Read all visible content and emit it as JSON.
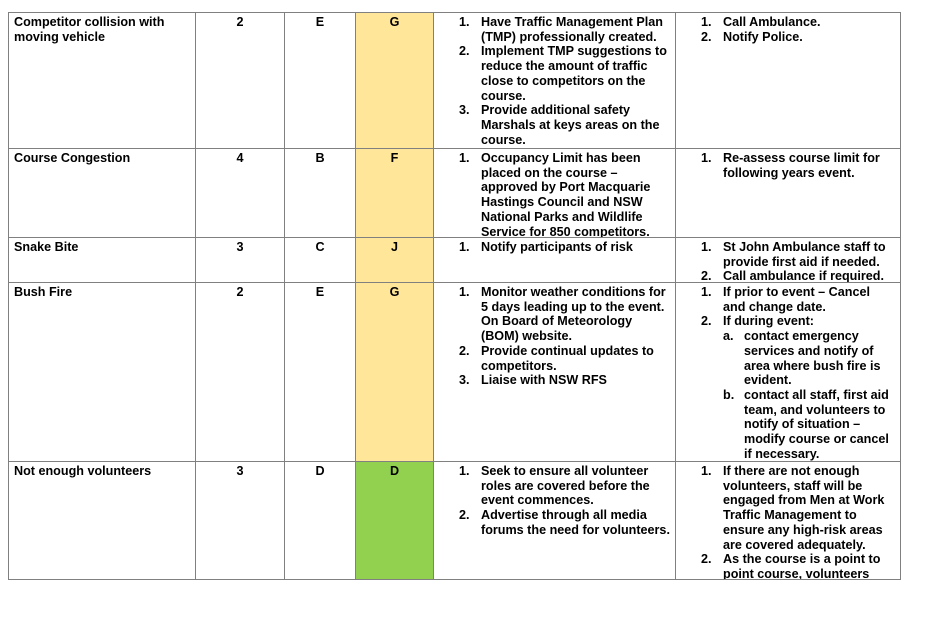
{
  "colors": {
    "yellow": "#ffe699",
    "green": "#92d050",
    "border": "#808080"
  },
  "rows": [
    {
      "hazard": "Competitor collision with moving vehicle",
      "likelihood": "2",
      "consequence": "E",
      "rating": "G",
      "rating_color": "yellow",
      "controls": [
        "Have Traffic Management Plan (TMP) professionally created.",
        "Implement TMP suggestions to reduce the amount of traffic close to competitors on the course.",
        "Provide additional safety Marshals at keys areas on the course."
      ],
      "response": [
        {
          "text": "Call Ambulance."
        },
        {
          "text": "Notify Police."
        }
      ]
    },
    {
      "hazard": "Course Congestion",
      "likelihood": "4",
      "consequence": "B",
      "rating": "F",
      "rating_color": "yellow",
      "controls": [
        "Occupancy Limit has been placed on the course – approved by Port Macquarie Hastings Council and NSW National Parks and Wildlife Service for 850 competitors."
      ],
      "response": [
        {
          "text": "Re-assess course limit for following years event."
        }
      ]
    },
    {
      "hazard": "Snake Bite",
      "likelihood": "3",
      "consequence": "C",
      "rating": "J",
      "rating_color": "yellow",
      "controls": [
        "Notify participants of risk"
      ],
      "response": [
        {
          "text": "St John Ambulance staff to provide first aid if needed."
        },
        {
          "text": "Call ambulance if required."
        }
      ]
    },
    {
      "hazard": "Bush Fire",
      "likelihood": "2",
      "consequence": "E",
      "rating": "G",
      "rating_color": "yellow",
      "controls": [
        "Monitor weather conditions for 5 days leading up to the event. On Board of Meteorology (BOM) website.",
        "Provide continual updates to competitors.",
        "Liaise with NSW RFS"
      ],
      "response": [
        {
          "text": "If prior to event – Cancel and change date."
        },
        {
          "text": "If during event:",
          "sub": [
            "contact emergency services and notify of area where bush fire is evident.",
            "contact all staff, first aid team, and volunteers to notify of situation – modify course or cancel if necessary."
          ]
        }
      ]
    },
    {
      "hazard": "Not enough volunteers",
      "likelihood": "3",
      "consequence": "D",
      "rating": "D",
      "rating_color": "green",
      "controls": [
        "Seek to ensure all volunteer roles are covered before the event commences.",
        "Advertise through all media forums the need for volunteers."
      ],
      "response": [
        {
          "text": "If there are not enough volunteers, staff will be engaged from Men at Work Traffic Management to ensure any high-risk areas are covered adequately."
        },
        {
          "text": "As the course is a point to point course, volunteers"
        }
      ]
    }
  ]
}
